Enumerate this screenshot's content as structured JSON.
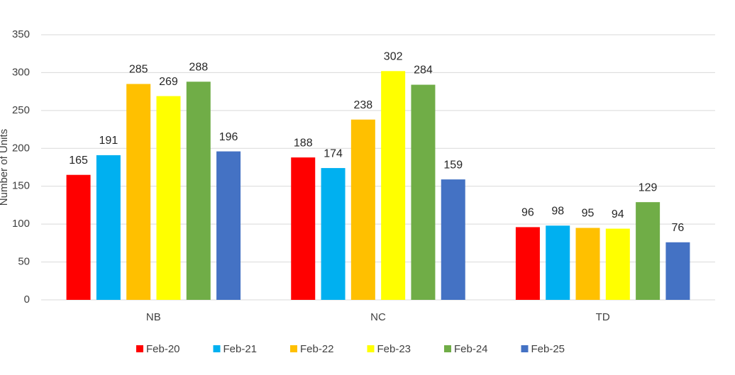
{
  "chart_data": {
    "type": "bar",
    "y_label": "Number of Units",
    "categories": [
      "NB",
      "NC",
      "TD"
    ],
    "series": [
      {
        "name": "Feb-20",
        "color": "#ff0000",
        "values": [
          165,
          188,
          96
        ]
      },
      {
        "name": "Feb-21",
        "color": "#00b0f0",
        "values": [
          191,
          174,
          98
        ]
      },
      {
        "name": "Feb-22",
        "color": "#ffc000",
        "values": [
          285,
          238,
          95
        ]
      },
      {
        "name": "Feb-23",
        "color": "#ffff00",
        "values": [
          269,
          302,
          94
        ]
      },
      {
        "name": "Feb-24",
        "color": "#70ad47",
        "values": [
          288,
          284,
          129
        ]
      },
      {
        "name": "Feb-25",
        "color": "#4472c4",
        "values": [
          196,
          159,
          76
        ]
      }
    ],
    "ylim": [
      0,
      350
    ],
    "yticks": [
      0,
      50,
      100,
      150,
      200,
      250,
      300,
      350
    ],
    "grid": true,
    "legend": "bottom"
  }
}
